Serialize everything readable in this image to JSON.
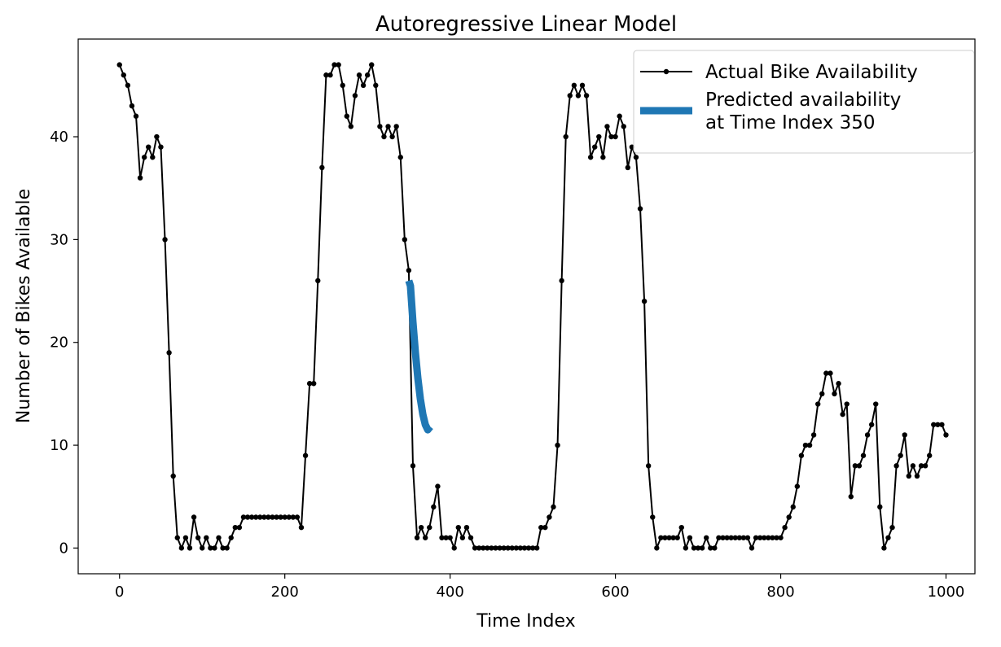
{
  "chart_data": {
    "type": "line",
    "title": "Autoregressive Linear Model",
    "x_label": "Time Index",
    "y_label": "Number of Bikes Available",
    "xlim": [
      -50,
      1035
    ],
    "ylim": [
      -2.5,
      49.5
    ],
    "xticks": [
      0,
      200,
      400,
      600,
      800,
      1000
    ],
    "yticks": [
      0,
      10,
      20,
      30,
      40
    ],
    "grid": false,
    "legend": "upper right",
    "series": [
      {
        "name": "Actual Bike Availability",
        "color": "#000000",
        "marker": true,
        "line_width": 2,
        "x": [
          0,
          5,
          10,
          15,
          20,
          25,
          30,
          35,
          40,
          45,
          50,
          55,
          60,
          65,
          70,
          75,
          80,
          85,
          90,
          95,
          100,
          105,
          110,
          115,
          120,
          125,
          130,
          135,
          140,
          145,
          150,
          155,
          160,
          165,
          170,
          175,
          180,
          185,
          190,
          195,
          200,
          205,
          210,
          215,
          220,
          225,
          230,
          235,
          240,
          245,
          250,
          255,
          260,
          265,
          270,
          275,
          280,
          285,
          290,
          295,
          300,
          305,
          310,
          315,
          320,
          325,
          330,
          335,
          340,
          345,
          350,
          355,
          360,
          365,
          370,
          375,
          380,
          385,
          390,
          395,
          400,
          405,
          410,
          415,
          420,
          425,
          430,
          435,
          440,
          445,
          450,
          455,
          460,
          465,
          470,
          475,
          480,
          485,
          490,
          495,
          500,
          505,
          510,
          515,
          520,
          525,
          530,
          535,
          540,
          545,
          550,
          555,
          560,
          565,
          570,
          575,
          580,
          585,
          590,
          595,
          600,
          605,
          610,
          615,
          620,
          625,
          630,
          635,
          640,
          645,
          650,
          655,
          660,
          665,
          670,
          675,
          680,
          685,
          690,
          695,
          700,
          705,
          710,
          715,
          720,
          725,
          730,
          735,
          740,
          745,
          750,
          755,
          760,
          765,
          770,
          775,
          780,
          785,
          790,
          795,
          800,
          805,
          810,
          815,
          820,
          825,
          830,
          835,
          840,
          845,
          850,
          855,
          860,
          865,
          870,
          875,
          880,
          885,
          890,
          895,
          900,
          905,
          910,
          915,
          920,
          925,
          930,
          935,
          940,
          945,
          950,
          955,
          960,
          965,
          970,
          975,
          980,
          985,
          990,
          995,
          1000
        ],
        "values": [
          47,
          46,
          45,
          43,
          42,
          36,
          38,
          39,
          38,
          40,
          39,
          30,
          19,
          7,
          1,
          0,
          1,
          0,
          3,
          1,
          0,
          1,
          0,
          0,
          1,
          0,
          0,
          1,
          2,
          2,
          3,
          3,
          3,
          3,
          3,
          3,
          3,
          3,
          3,
          3,
          3,
          3,
          3,
          3,
          2,
          9,
          16,
          16,
          26,
          37,
          46,
          46,
          47,
          47,
          45,
          42,
          41,
          44,
          46,
          45,
          46,
          47,
          45,
          41,
          40,
          41,
          40,
          41,
          38,
          30,
          27,
          8,
          1,
          2,
          1,
          2,
          4,
          6,
          1,
          1,
          1,
          0,
          2,
          1,
          2,
          1,
          0,
          0,
          0,
          0,
          0,
          0,
          0,
          0,
          0,
          0,
          0,
          0,
          0,
          0,
          0,
          0,
          2,
          2,
          3,
          4,
          10,
          26,
          40,
          44,
          45,
          44,
          45,
          44,
          38,
          39,
          40,
          38,
          41,
          40,
          40,
          42,
          41,
          37,
          39,
          38,
          33,
          24,
          8,
          3,
          0,
          1,
          1,
          1,
          1,
          1,
          2,
          0,
          1,
          0,
          0,
          0,
          1,
          0,
          0,
          1,
          1,
          1,
          1,
          1,
          1,
          1,
          1,
          0,
          1,
          1,
          1,
          1,
          1,
          1,
          1,
          2,
          3,
          4,
          6,
          9,
          10,
          10,
          11,
          14,
          15,
          17,
          17,
          15,
          16,
          13,
          14,
          5,
          8,
          8,
          9,
          11,
          12,
          14,
          4,
          0,
          1,
          2,
          8,
          9,
          11,
          7,
          8,
          7,
          8,
          8,
          9,
          12,
          12,
          12,
          11
        ]
      },
      {
        "name": "Predicted availability\nat Time Index 350",
        "color": "#1f77b4",
        "marker": false,
        "line_width": 9,
        "x": [
          350,
          352,
          355,
          358,
          361,
          364,
          367,
          370,
          373,
          376
        ],
        "values": [
          26,
          25.5,
          22,
          19,
          16.5,
          14.5,
          13,
          12,
          11.5,
          11.8
        ]
      }
    ]
  }
}
